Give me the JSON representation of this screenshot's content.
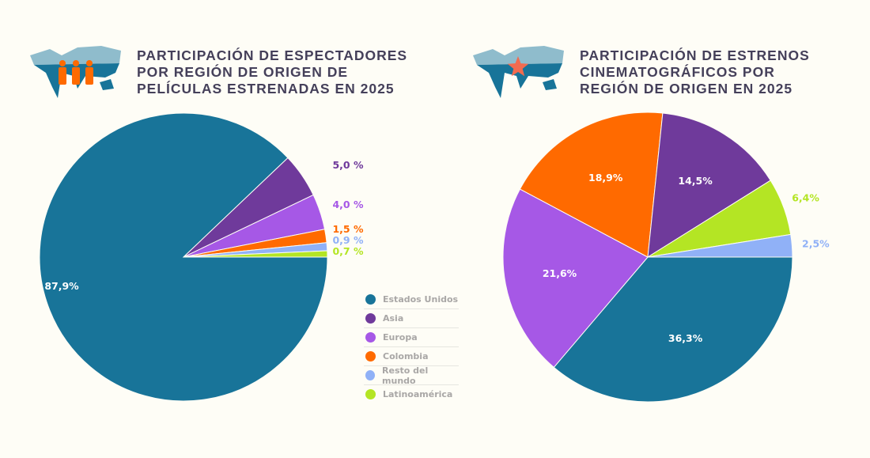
{
  "chart_data": [
    {
      "type": "pie",
      "title": "PARTICIPACIÓN DE ESPECTADORES POR REGIÓN DE ORIGEN DE PELÍCULAS ESTRENADAS EN 2025",
      "slices": [
        {
          "name": "Estados Unidos",
          "value": 87.9,
          "label": "87,9%",
          "color": "#187499"
        },
        {
          "name": "Asia",
          "value": 5.0,
          "label": "5,0 %",
          "color": "#6f3a9b"
        },
        {
          "name": "Europa",
          "value": 4.0,
          "label": "4,0 %",
          "color": "#a658e6"
        },
        {
          "name": "Colombia",
          "value": 1.5,
          "label": "1,5 %",
          "color": "#ff6a00"
        },
        {
          "name": "Resto del mundo",
          "value": 0.9,
          "label": "0,9 %",
          "color": "#90b1f7"
        },
        {
          "name": "Latinoamérica",
          "value": 0.7,
          "label": "0,7 %",
          "color": "#b4e524"
        }
      ],
      "legend": [
        "Estados Unidos",
        "Asia",
        "Europa",
        "Colombia",
        "Resto del mundo",
        "Latinoamérica"
      ]
    },
    {
      "type": "pie",
      "title": "PARTICIPACIÓN DE ESTRENOS CINEMATOGRÁFICOS POR REGIÓN DE ORIGEN EN 2025",
      "slices": [
        {
          "name": "Estados Unidos",
          "value": 36.3,
          "label": "36,3%",
          "color": "#187499"
        },
        {
          "name": "Europa",
          "value": 21.6,
          "label": "21,6%",
          "color": "#a658e6"
        },
        {
          "name": "Colombia",
          "value": 18.9,
          "label": "18,9%",
          "color": "#ff6a00"
        },
        {
          "name": "Asia",
          "value": 14.5,
          "label": "14,5%",
          "color": "#6f3a9b"
        },
        {
          "name": "Latinoamérica",
          "value": 6.4,
          "label": "6,4%",
          "color": "#b4e524"
        },
        {
          "name": "Resto del mundo",
          "value": 2.5,
          "label": "2,5%",
          "color": "#90b1f7"
        }
      ]
    }
  ]
}
